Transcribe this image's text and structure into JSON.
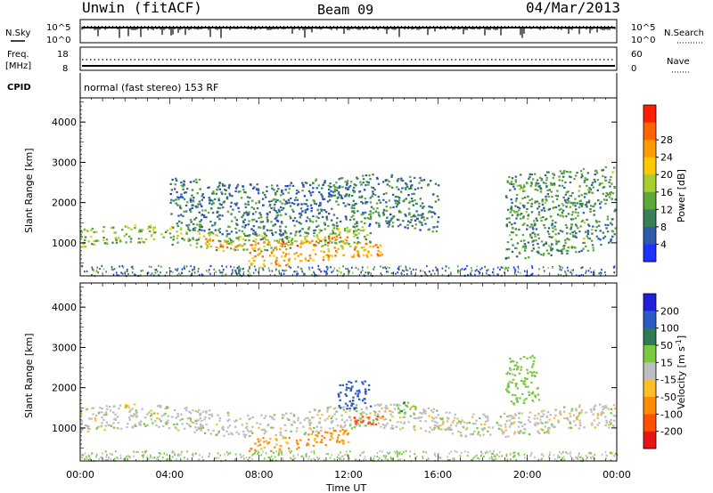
{
  "header": {
    "station": "Unwin (fitACF)",
    "beam": "Beam 09",
    "date": "04/Mar/2013"
  },
  "top_panel": {
    "left_label": "N.Sky",
    "right_label": "N.Search",
    "left_ticks": [
      "10^5",
      "10^0"
    ],
    "right_ticks": [
      "10^5",
      "10^0"
    ]
  },
  "freq_panel": {
    "left_label_1": "Freq.",
    "left_label_2": "[MHz]",
    "right_label": "Nave",
    "left_ticks": [
      "18",
      "8"
    ],
    "right_ticks": [
      "60",
      "0"
    ]
  },
  "cpid": {
    "label": "CPID",
    "text": "normal (fast stereo) 153 RF"
  },
  "chart_data": [
    {
      "type": "heatmap",
      "title": "",
      "quantity": "Power",
      "xlabel": "Time UT",
      "ylabel": "Slant Range [km]",
      "xlim": [
        0,
        24
      ],
      "ylim": [
        180,
        4600
      ],
      "x_ticks": [
        "00:00",
        "04:00",
        "08:00",
        "12:00",
        "16:00",
        "20:00",
        "00:00"
      ],
      "y_ticks": [
        1000,
        2000,
        3000,
        4000
      ],
      "colorbar": {
        "label": "Power [dB]",
        "ticks": [
          4,
          8,
          12,
          16,
          20,
          24,
          28
        ],
        "colors": [
          "#1e32ff",
          "#2e5aa8",
          "#3a7f58",
          "#5ea83a",
          "#a6cf2e",
          "#ffc800",
          "#ff9a00",
          "#ff6400",
          "#ff1e00"
        ]
      },
      "features": [
        {
          "name": "main band",
          "x": [
            0,
            13
          ],
          "range_km": [
            900,
            1350
          ],
          "power_db": 14
        },
        {
          "name": "enhanced band",
          "x": [
            5.5,
            12
          ],
          "range_km": [
            950,
            1150
          ],
          "power_db": 24
        },
        {
          "name": "low echo",
          "x": [
            7.5,
            13.5
          ],
          "range_km": [
            550,
            900
          ],
          "power_db": 22
        },
        {
          "name": "upper diffuse",
          "x": [
            4,
            16
          ],
          "range_km": [
            1300,
            2600
          ],
          "power_db": 8
        },
        {
          "name": "dusk arc",
          "x": [
            19,
            24
          ],
          "range_km": [
            700,
            2800
          ],
          "power_db": 10
        }
      ]
    },
    {
      "type": "heatmap",
      "title": "",
      "quantity": "Velocity",
      "xlabel": "Time UT",
      "ylabel": "Slant Range [km]",
      "xlim": [
        0,
        24
      ],
      "ylim": [
        180,
        4600
      ],
      "x_ticks": [
        "00:00",
        "04:00",
        "08:00",
        "12:00",
        "16:00",
        "20:00",
        "00:00"
      ],
      "y_ticks": [
        1000,
        2000,
        3000,
        4000
      ],
      "colorbar": {
        "label": "Velocity [m s^-1]",
        "ticks": [
          200,
          100,
          50,
          15,
          -15,
          -50,
          -100,
          -200
        ],
        "colors": [
          "#1e1edc",
          "#2a5ac8",
          "#2d7a55",
          "#78c840",
          "#bebebe",
          "#ffbe28",
          "#ff8c00",
          "#ff5000",
          "#e61414"
        ]
      },
      "features": [
        {
          "name": "ground scatter",
          "x": [
            0,
            24
          ],
          "range_km": [
            900,
            1500
          ],
          "velocity": 0
        },
        {
          "name": "negative patch",
          "x": [
            7.5,
            12
          ],
          "range_km": [
            550,
            900
          ],
          "velocity": -60
        },
        {
          "name": "strong negative",
          "x": [
            12,
            13.5
          ],
          "range_km": [
            950,
            1200
          ],
          "velocity": -180
        },
        {
          "name": "positive patch",
          "x": [
            11.5,
            13
          ],
          "range_km": [
            1400,
            2100
          ],
          "velocity": 150
        },
        {
          "name": "green patch",
          "x": [
            14,
            15
          ],
          "range_km": [
            1300,
            1600
          ],
          "velocity": 40
        },
        {
          "name": "dusk green",
          "x": [
            19,
            20.5
          ],
          "range_km": [
            1700,
            2900
          ],
          "velocity": 30
        }
      ]
    }
  ]
}
